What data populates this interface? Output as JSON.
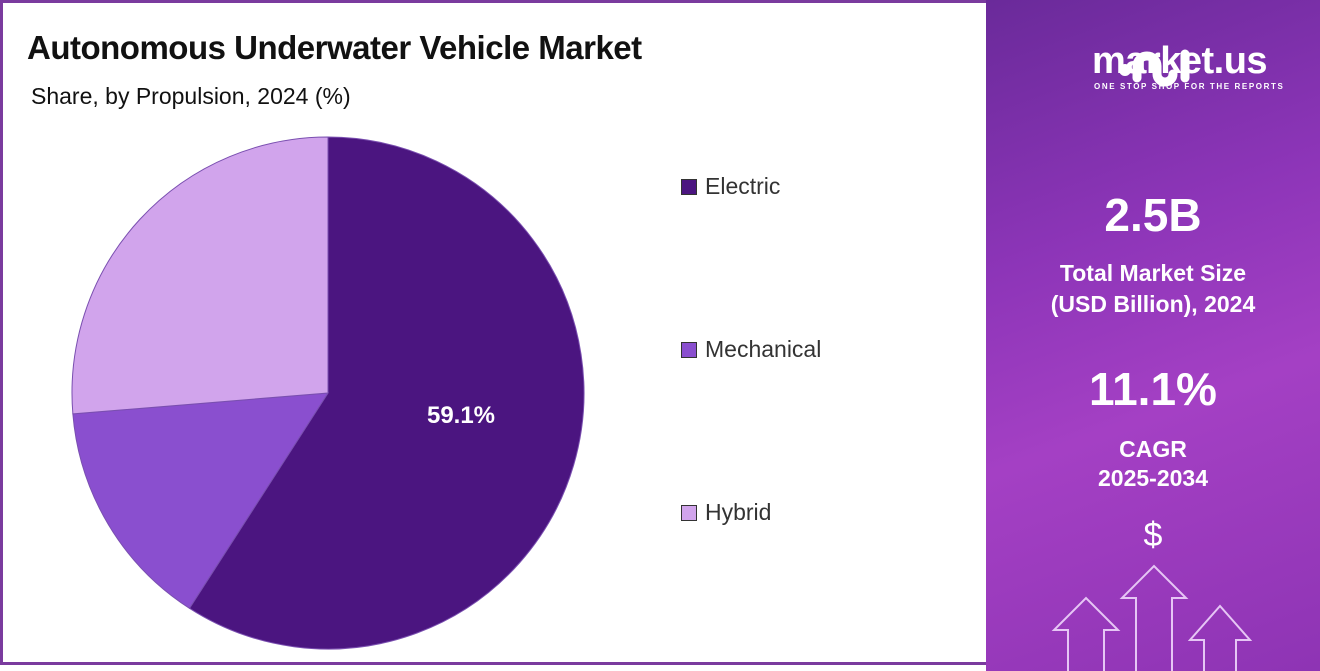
{
  "chart_data": {
    "type": "pie",
    "title": "Autonomous Underwater Vehicle Market",
    "subtitle": "Share, by Propulsion, 2024 (%)",
    "categories": [
      "Electric",
      "Mechanical",
      "Hybrid"
    ],
    "values": [
      59.1,
      14.6,
      26.3
    ],
    "colors": [
      "#4b1580",
      "#8a4fcf",
      "#d1a4ec"
    ],
    "data_labels": [
      "59.1%",
      "",
      ""
    ],
    "legend_position": "right"
  },
  "brand": {
    "name": "market.us",
    "tagline": "ONE STOP SHOP FOR THE REPORTS"
  },
  "stats": {
    "market_size": "2.5B",
    "market_size_label_1": "Total Market Size",
    "market_size_label_2": "(USD Billion), 2024",
    "cagr": "11.1%",
    "cagr_label_1": "CAGR",
    "cagr_label_2": "2025-2034",
    "currency_symbol": "$"
  }
}
